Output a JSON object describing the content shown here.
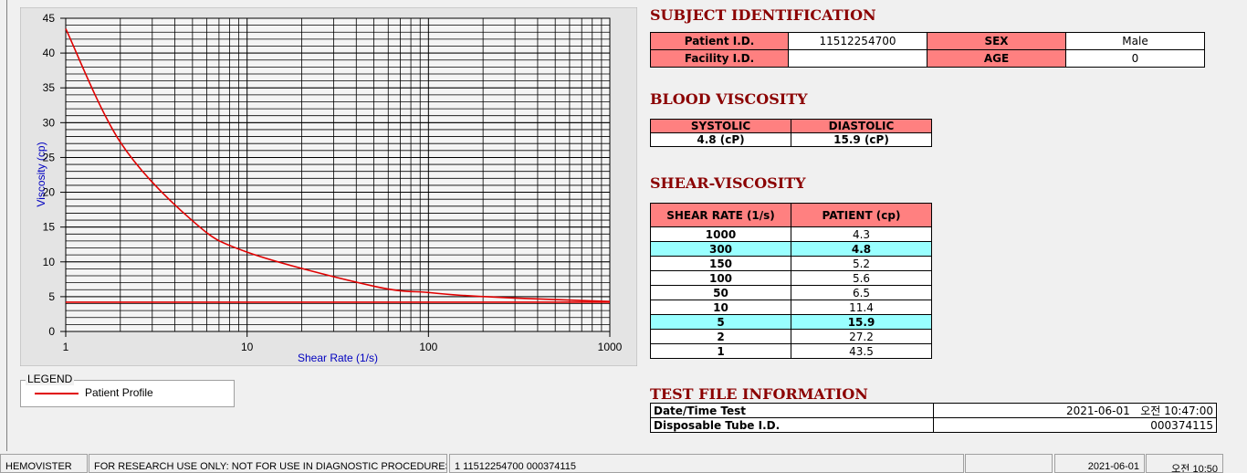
{
  "chart_data": {
    "type": "line",
    "x_label": "Shear Rate (1/s)",
    "y_label": "Viscosity (cp)",
    "x_scale": "log",
    "grid": true,
    "xlim": [
      1,
      1000
    ],
    "xticks": [
      1,
      10,
      100,
      1000
    ],
    "ylim": [
      0,
      45
    ],
    "yticks": [
      0,
      5,
      10,
      15,
      20,
      25,
      30,
      35,
      40,
      45
    ],
    "legend_title": "LEGEND",
    "series": [
      {
        "name": "Patient Profile",
        "color": "#e00000",
        "x": [
          1,
          2,
          5,
          10,
          50,
          100,
          150,
          300,
          1000
        ],
        "values": [
          43.5,
          27.2,
          15.9,
          11.4,
          6.5,
          5.6,
          5.2,
          4.8,
          4.3
        ]
      },
      {
        "color": "#e00000",
        "x": [
          1,
          1000
        ],
        "values": [
          4.2,
          4.2
        ]
      }
    ]
  },
  "subject": {
    "title": "SUBJECT IDENTIFICATION",
    "rows": [
      {
        "label": "Patient I.D.",
        "value": "11512254700",
        "label2": "SEX",
        "value2": "Male"
      },
      {
        "label": "Facility I.D.",
        "label2": "AGE",
        "value2": "0"
      }
    ]
  },
  "blood": {
    "title": "BLOOD VISCOSITY",
    "headers": [
      "SYSTOLIC",
      "DIASTOLIC"
    ],
    "values": [
      "4.8 (cP)",
      "15.9 (cP)"
    ]
  },
  "shear": {
    "title": "SHEAR-VISCOSITY",
    "headers": [
      "SHEAR RATE (1/s)",
      "PATIENT (cp)"
    ],
    "rows": [
      {
        "rate": "1000",
        "cp": "4.3"
      },
      {
        "rate": "300",
        "cp": "4.8",
        "highlight": true
      },
      {
        "rate": "150",
        "cp": "5.2"
      },
      {
        "rate": "100",
        "cp": "5.6"
      },
      {
        "rate": "50",
        "cp": "6.5"
      },
      {
        "rate": "10",
        "cp": "11.4"
      },
      {
        "rate": "5",
        "cp": "15.9",
        "highlight": true
      },
      {
        "rate": "2",
        "cp": "27.2"
      },
      {
        "rate": "1",
        "cp": "43.5"
      }
    ]
  },
  "test_file": {
    "title": "TEST FILE INFORMATION",
    "rows": [
      {
        "label": "Date/Time Test",
        "value": "2021-06-01   오전 10:47:00"
      },
      {
        "label": "Disposable Tube I.D.",
        "value": "000374115"
      }
    ]
  },
  "status_bar": [
    "HEMOVISTER",
    "FOR RESEARCH USE ONLY: NOT FOR USE IN DIAGNOSTIC PROCEDURES",
    "1  11512254700  000374115",
    "2021-06-01",
    "오전 10:50"
  ]
}
